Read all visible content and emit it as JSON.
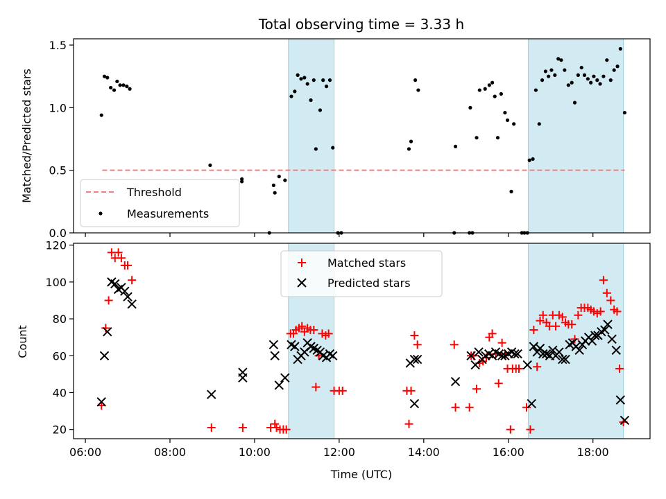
{
  "chart_data": [
    {
      "type": "scatter",
      "title": "Total observing time = 3.33 h",
      "ylabel": "Matched/Predicted stars",
      "xlim": [
        5.72,
        19.35
      ],
      "ylim": [
        0,
        1.55
      ],
      "yticks": [
        0,
        0.5,
        1.0,
        1.5
      ],
      "ytick_labels": [
        "0.0",
        "0.5",
        "1.0",
        "1.5"
      ],
      "shaded_spans": [
        [
          10.8,
          11.88
        ],
        [
          16.47,
          18.72
        ]
      ],
      "threshold": {
        "name": "Threshold",
        "value": 0.5,
        "x_range": [
          6.4,
          18.75
        ],
        "color": "#f08080",
        "style": "dashed"
      },
      "series": [
        {
          "name": "Measurements",
          "color": "#000000",
          "marker": "dot",
          "points": [
            [
              6.38,
              0.94
            ],
            [
              6.45,
              1.25
            ],
            [
              6.52,
              1.24
            ],
            [
              6.6,
              1.16
            ],
            [
              6.68,
              1.14
            ],
            [
              6.75,
              1.21
            ],
            [
              6.82,
              1.18
            ],
            [
              6.9,
              1.18
            ],
            [
              6.98,
              1.17
            ],
            [
              7.05,
              1.15
            ],
            [
              8.95,
              0.54
            ],
            [
              9.7,
              0.43
            ],
            [
              9.7,
              0.41
            ],
            [
              10.35,
              0.0
            ],
            [
              10.45,
              0.38
            ],
            [
              10.48,
              0.32
            ],
            [
              10.58,
              0.45
            ],
            [
              10.72,
              0.42
            ],
            [
              10.87,
              1.09
            ],
            [
              10.95,
              1.13
            ],
            [
              11.02,
              1.26
            ],
            [
              11.1,
              1.23
            ],
            [
              11.18,
              1.24
            ],
            [
              11.25,
              1.19
            ],
            [
              11.33,
              1.06
            ],
            [
              11.4,
              1.22
            ],
            [
              11.45,
              0.67
            ],
            [
              11.55,
              0.98
            ],
            [
              11.62,
              1.22
            ],
            [
              11.7,
              1.17
            ],
            [
              11.78,
              1.22
            ],
            [
              11.85,
              0.68
            ],
            [
              11.97,
              0.0
            ],
            [
              12.05,
              0.0
            ],
            [
              13.65,
              0.67
            ],
            [
              13.7,
              0.73
            ],
            [
              13.8,
              1.22
            ],
            [
              13.87,
              1.14
            ],
            [
              14.72,
              0.0
            ],
            [
              14.75,
              0.69
            ],
            [
              15.08,
              0.0
            ],
            [
              15.1,
              1.0
            ],
            [
              15.15,
              0.0
            ],
            [
              15.25,
              0.76
            ],
            [
              15.32,
              1.14
            ],
            [
              15.45,
              1.15
            ],
            [
              15.55,
              1.18
            ],
            [
              15.62,
              1.2
            ],
            [
              15.68,
              1.09
            ],
            [
              15.75,
              0.76
            ],
            [
              15.83,
              1.11
            ],
            [
              15.92,
              0.96
            ],
            [
              15.98,
              0.9
            ],
            [
              16.07,
              0.33
            ],
            [
              16.13,
              0.87
            ],
            [
              16.32,
              0.0
            ],
            [
              16.38,
              0.0
            ],
            [
              16.45,
              0.0
            ],
            [
              16.5,
              0.58
            ],
            [
              16.58,
              0.59
            ],
            [
              16.65,
              1.14
            ],
            [
              16.73,
              0.87
            ],
            [
              16.8,
              1.22
            ],
            [
              16.88,
              1.29
            ],
            [
              16.95,
              1.25
            ],
            [
              17.02,
              1.3
            ],
            [
              17.1,
              1.26
            ],
            [
              17.18,
              1.39
            ],
            [
              17.25,
              1.38
            ],
            [
              17.33,
              1.3
            ],
            [
              17.42,
              1.18
            ],
            [
              17.5,
              1.2
            ],
            [
              17.57,
              1.04
            ],
            [
              17.65,
              1.26
            ],
            [
              17.73,
              1.32
            ],
            [
              17.8,
              1.26
            ],
            [
              17.88,
              1.23
            ],
            [
              17.95,
              1.2
            ],
            [
              18.02,
              1.25
            ],
            [
              18.1,
              1.22
            ],
            [
              18.17,
              1.19
            ],
            [
              18.25,
              1.25
            ],
            [
              18.33,
              1.38
            ],
            [
              18.42,
              1.22
            ],
            [
              18.5,
              1.3
            ],
            [
              18.58,
              1.33
            ],
            [
              18.65,
              1.47
            ],
            [
              18.75,
              0.96
            ]
          ]
        }
      ],
      "legend": {
        "placement": "lower-left",
        "entries": [
          "Threshold",
          "Measurements"
        ]
      }
    },
    {
      "type": "scatter",
      "xlabel": "Time (UTC)",
      "ylabel": "Count",
      "xlim": [
        5.72,
        19.35
      ],
      "ylim": [
        15,
        121
      ],
      "xticks": [
        6,
        8,
        10,
        12,
        14,
        16,
        18
      ],
      "xtick_labels": [
        "06:00",
        "08:00",
        "10:00",
        "12:00",
        "14:00",
        "16:00",
        "18:00"
      ],
      "yticks": [
        20,
        40,
        60,
        80,
        100,
        120
      ],
      "ytick_labels": [
        "20",
        "40",
        "60",
        "80",
        "100",
        "120"
      ],
      "shaded_spans": [
        [
          10.8,
          11.88
        ],
        [
          16.47,
          18.72
        ]
      ],
      "series": [
        {
          "name": "Matched stars",
          "color": "#ff0000",
          "marker": "plus",
          "points": [
            [
              6.38,
              33
            ],
            [
              6.48,
              75
            ],
            [
              6.55,
              90
            ],
            [
              6.62,
              116
            ],
            [
              6.7,
              113
            ],
            [
              6.78,
              116
            ],
            [
              6.85,
              113
            ],
            [
              6.93,
              109
            ],
            [
              7.0,
              109
            ],
            [
              7.1,
              101
            ],
            [
              8.98,
              21
            ],
            [
              9.72,
              21
            ],
            [
              10.38,
              21
            ],
            [
              10.48,
              23
            ],
            [
              10.52,
              21
            ],
            [
              10.6,
              20
            ],
            [
              10.68,
              20
            ],
            [
              10.75,
              20
            ],
            [
              10.85,
              72
            ],
            [
              10.92,
              72
            ],
            [
              10.98,
              74
            ],
            [
              11.05,
              75
            ],
            [
              11.12,
              76
            ],
            [
              11.18,
              73
            ],
            [
              11.25,
              75
            ],
            [
              11.32,
              74
            ],
            [
              11.4,
              74
            ],
            [
              11.45,
              43
            ],
            [
              11.52,
              60
            ],
            [
              11.6,
              72
            ],
            [
              11.68,
              71
            ],
            [
              11.75,
              72
            ],
            [
              11.88,
              41
            ],
            [
              12.0,
              41
            ],
            [
              12.08,
              41
            ],
            [
              13.6,
              41
            ],
            [
              13.65,
              23
            ],
            [
              13.7,
              41
            ],
            [
              13.78,
              71
            ],
            [
              13.85,
              66
            ],
            [
              14.72,
              66
            ],
            [
              14.75,
              32
            ],
            [
              15.08,
              32
            ],
            [
              15.12,
              60
            ],
            [
              15.18,
              60
            ],
            [
              15.25,
              42
            ],
            [
              15.32,
              56
            ],
            [
              15.4,
              57
            ],
            [
              15.48,
              59
            ],
            [
              15.55,
              70
            ],
            [
              15.62,
              72
            ],
            [
              15.7,
              61
            ],
            [
              15.77,
              45
            ],
            [
              15.85,
              67
            ],
            [
              15.92,
              61
            ],
            [
              15.98,
              53
            ],
            [
              16.05,
              20
            ],
            [
              16.1,
              53
            ],
            [
              16.18,
              53
            ],
            [
              16.25,
              53
            ],
            [
              16.43,
              32
            ],
            [
              16.52,
              20
            ],
            [
              16.6,
              74
            ],
            [
              16.68,
              54
            ],
            [
              16.75,
              79
            ],
            [
              16.82,
              82
            ],
            [
              16.9,
              78
            ],
            [
              16.97,
              76
            ],
            [
              17.05,
              82
            ],
            [
              17.12,
              76
            ],
            [
              17.2,
              82
            ],
            [
              17.28,
              81
            ],
            [
              17.35,
              78
            ],
            [
              17.42,
              77
            ],
            [
              17.5,
              77
            ],
            [
              17.57,
              69
            ],
            [
              17.65,
              82
            ],
            [
              17.72,
              86
            ],
            [
              17.8,
              86
            ],
            [
              17.88,
              86
            ],
            [
              17.95,
              85
            ],
            [
              18.02,
              84
            ],
            [
              18.1,
              83
            ],
            [
              18.18,
              84
            ],
            [
              18.25,
              101
            ],
            [
              18.33,
              94
            ],
            [
              18.42,
              90
            ],
            [
              18.5,
              85
            ],
            [
              18.57,
              84
            ],
            [
              18.63,
              53
            ],
            [
              18.72,
              24
            ]
          ]
        },
        {
          "name": "Predicted stars",
          "color": "#000000",
          "marker": "cross",
          "points": [
            [
              6.38,
              35
            ],
            [
              6.45,
              60
            ],
            [
              6.52,
              73
            ],
            [
              6.62,
              100
            ],
            [
              6.7,
              99
            ],
            [
              6.78,
              96
            ],
            [
              6.85,
              97
            ],
            [
              6.93,
              95
            ],
            [
              7.0,
              92
            ],
            [
              7.1,
              88
            ],
            [
              8.98,
              39
            ],
            [
              9.72,
              51
            ],
            [
              9.72,
              48
            ],
            [
              10.45,
              66
            ],
            [
              10.48,
              60
            ],
            [
              10.58,
              44
            ],
            [
              10.72,
              48
            ],
            [
              10.87,
              66
            ],
            [
              10.95,
              65
            ],
            [
              11.02,
              58
            ],
            [
              11.1,
              60
            ],
            [
              11.18,
              62
            ],
            [
              11.25,
              67
            ],
            [
              11.33,
              65
            ],
            [
              11.4,
              64
            ],
            [
              11.48,
              63
            ],
            [
              11.55,
              62
            ],
            [
              11.62,
              60
            ],
            [
              11.7,
              59
            ],
            [
              11.78,
              61
            ],
            [
              11.85,
              60
            ],
            [
              13.68,
              56
            ],
            [
              13.78,
              34
            ],
            [
              13.78,
              58
            ],
            [
              13.85,
              58
            ],
            [
              14.75,
              46
            ],
            [
              15.12,
              60
            ],
            [
              15.22,
              55
            ],
            [
              15.3,
              62
            ],
            [
              15.38,
              58
            ],
            [
              15.46,
              60
            ],
            [
              15.54,
              61
            ],
            [
              15.62,
              60
            ],
            [
              15.7,
              62
            ],
            [
              15.78,
              61
            ],
            [
              15.85,
              60
            ],
            [
              15.92,
              60
            ],
            [
              16.0,
              61
            ],
            [
              16.08,
              62
            ],
            [
              16.15,
              61
            ],
            [
              16.22,
              61
            ],
            [
              16.45,
              55
            ],
            [
              16.55,
              34
            ],
            [
              16.6,
              65
            ],
            [
              16.68,
              62
            ],
            [
              16.75,
              64
            ],
            [
              16.82,
              61
            ],
            [
              16.9,
              61
            ],
            [
              16.98,
              60
            ],
            [
              17.05,
              63
            ],
            [
              17.12,
              60
            ],
            [
              17.2,
              62
            ],
            [
              17.28,
              58
            ],
            [
              17.35,
              58
            ],
            [
              17.45,
              66
            ],
            [
              17.52,
              67
            ],
            [
              17.6,
              65
            ],
            [
              17.68,
              63
            ],
            [
              17.75,
              66
            ],
            [
              17.82,
              68
            ],
            [
              17.9,
              70
            ],
            [
              17.98,
              68
            ],
            [
              18.05,
              71
            ],
            [
              18.12,
              71
            ],
            [
              18.2,
              73
            ],
            [
              18.28,
              74
            ],
            [
              18.35,
              77
            ],
            [
              18.45,
              69
            ],
            [
              18.55,
              63
            ],
            [
              18.65,
              36
            ],
            [
              18.75,
              25
            ]
          ]
        }
      ],
      "legend": {
        "placement": "upper-center",
        "entries": [
          "Matched stars",
          "Predicted stars"
        ]
      }
    }
  ]
}
